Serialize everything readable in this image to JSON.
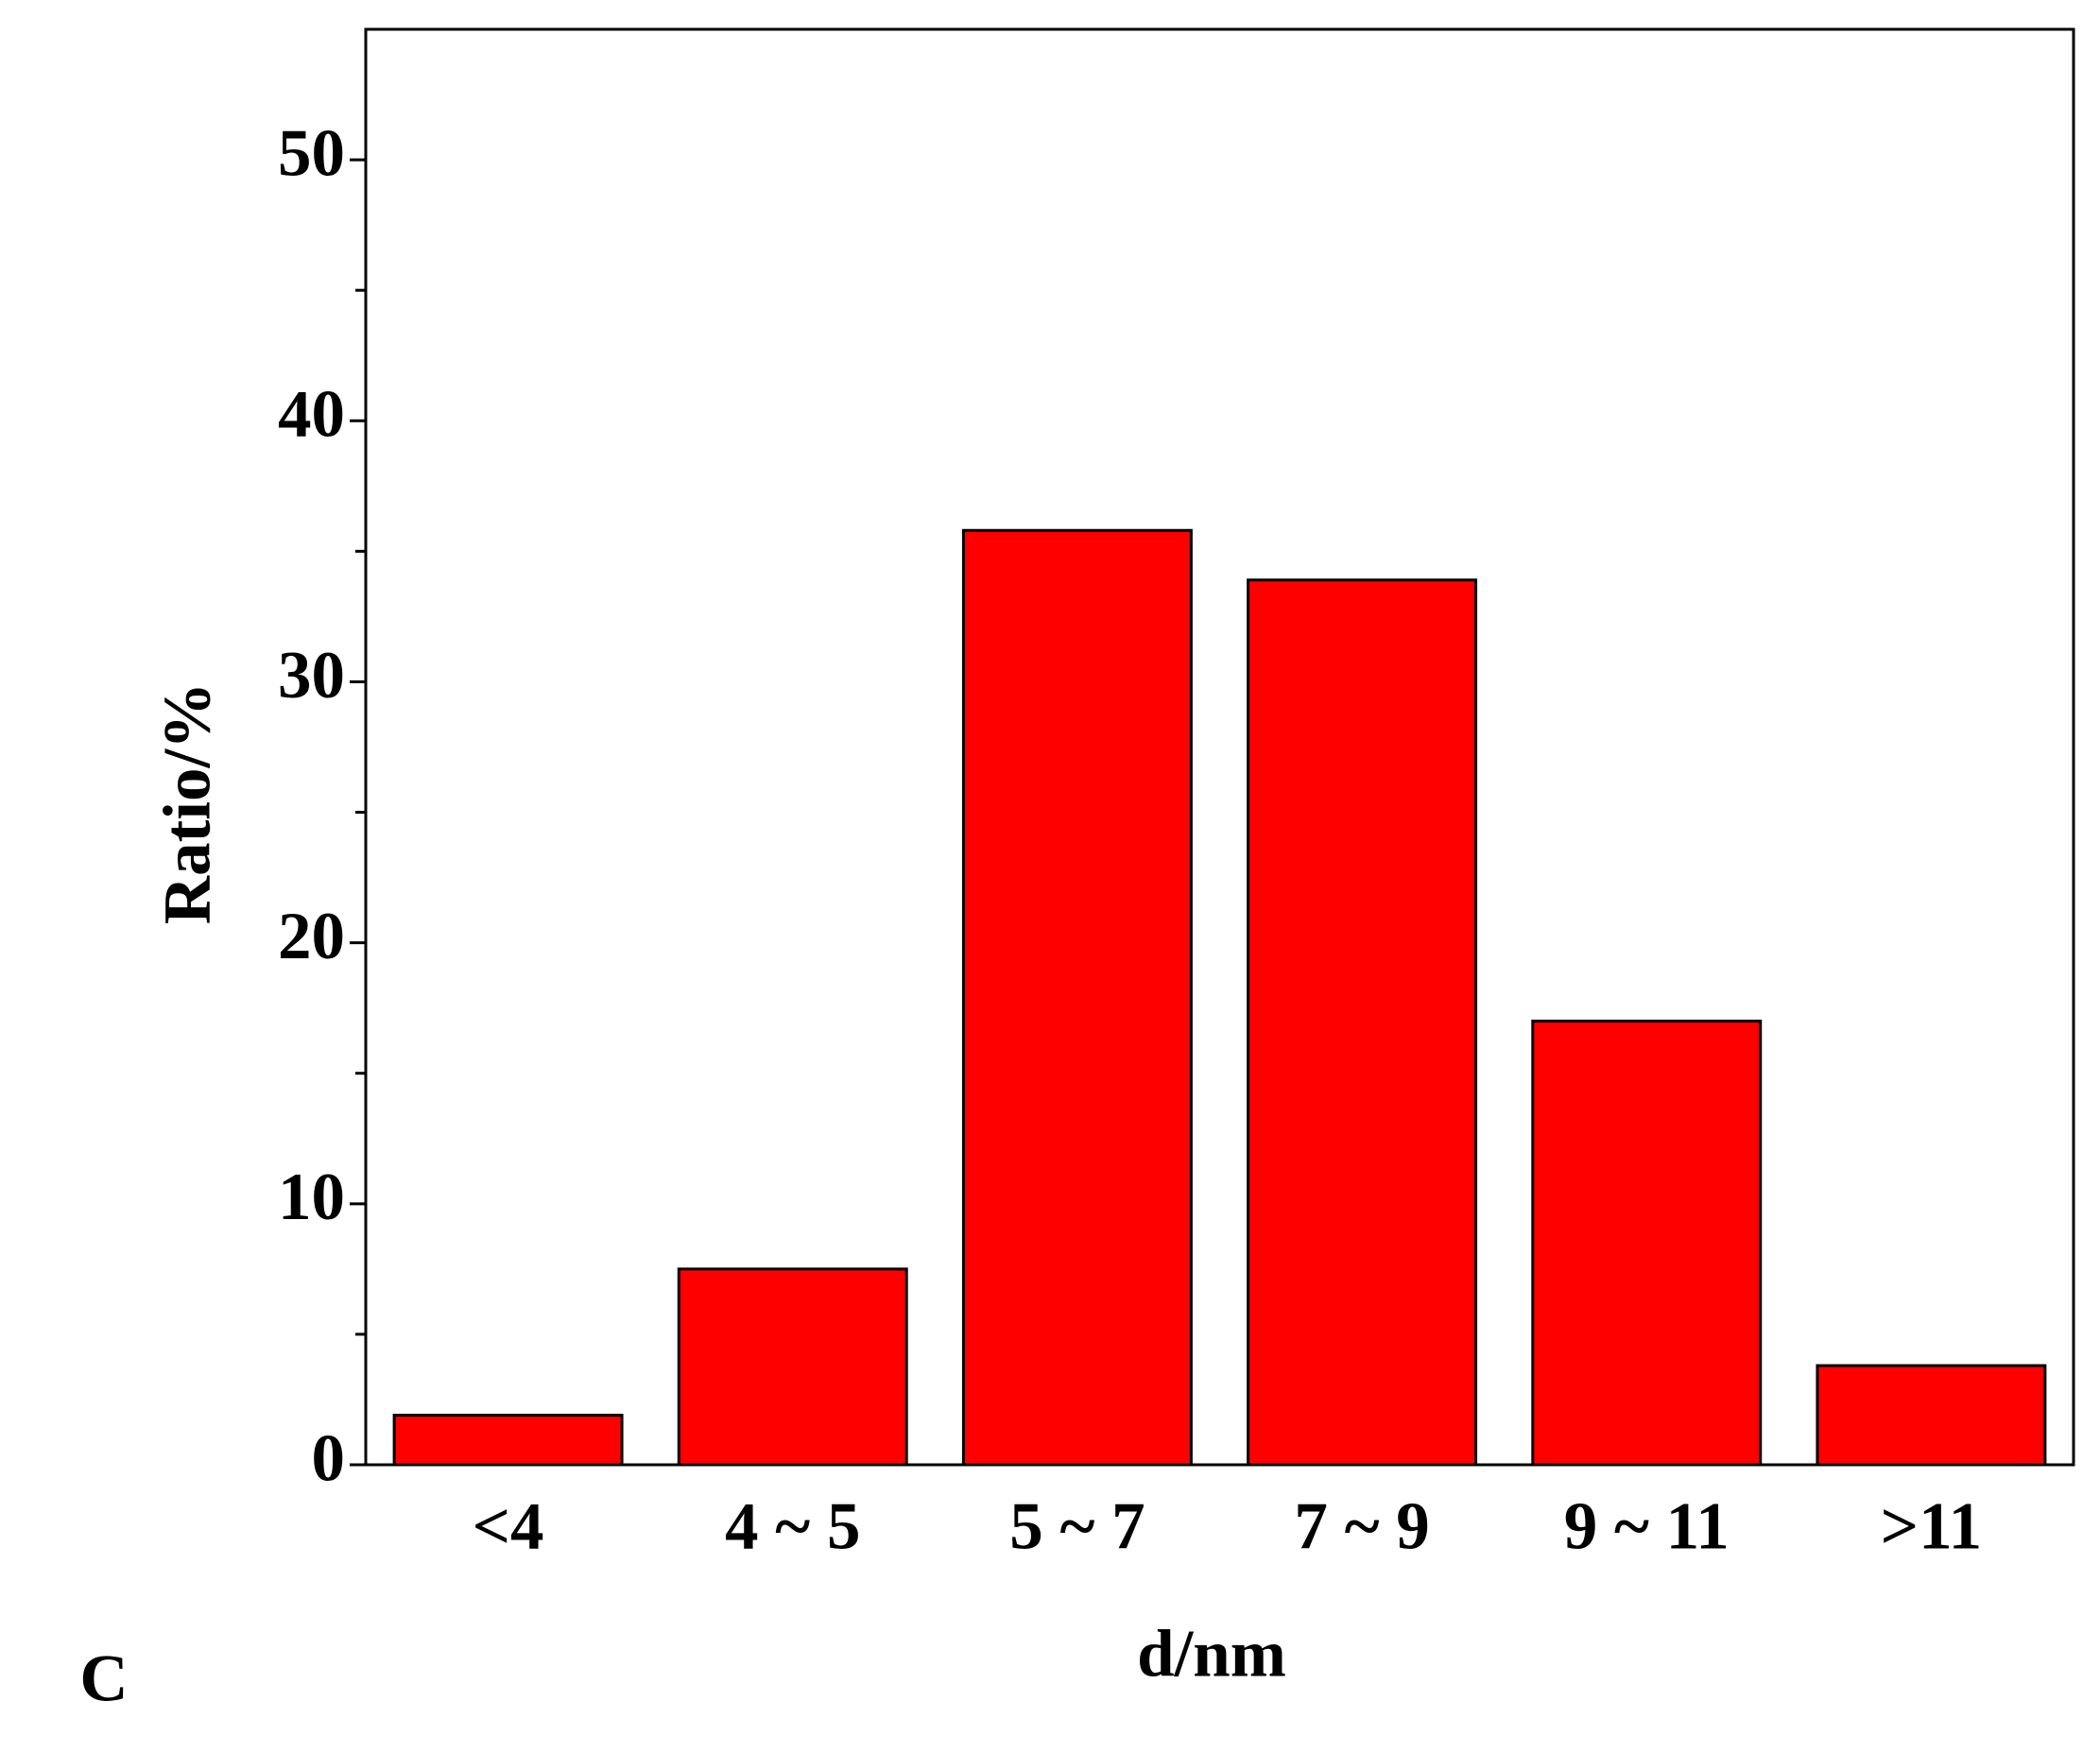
{
  "chart_data": {
    "type": "bar",
    "categories": [
      "<4",
      "4 ~ 5",
      "5 ~ 7",
      "7 ~ 9",
      "9 ~ 11",
      ">11"
    ],
    "values": [
      1.9,
      7.5,
      35.8,
      33.9,
      17.0,
      3.8
    ],
    "color": "#ff0000",
    "x_label": "d/nm",
    "y_label": "Ratio/%",
    "ylim": [
      0,
      55
    ],
    "yticks": [
      0,
      10,
      20,
      30,
      40,
      50
    ],
    "minor_yticks": [
      5,
      15,
      25,
      35,
      45
    ],
    "grid": false,
    "panel_label": "C"
  }
}
